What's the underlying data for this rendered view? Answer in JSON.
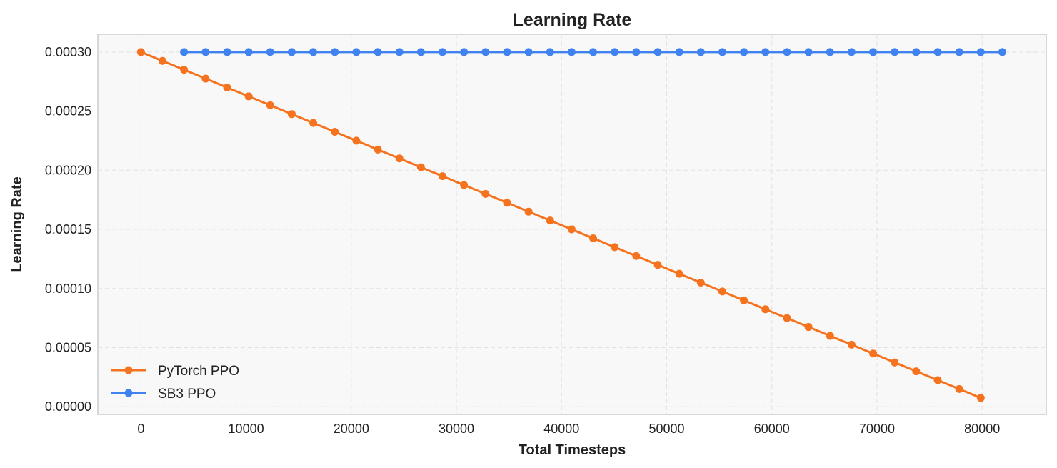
{
  "chart_data": {
    "type": "line",
    "title": "Learning Rate",
    "xlabel": "Total Timesteps",
    "ylabel": "Learning Rate",
    "xlim": [
      -4100,
      86100
    ],
    "ylim": [
      -6.5e-06,
      0.000315
    ],
    "xticks": [
      0,
      10000,
      20000,
      30000,
      40000,
      50000,
      60000,
      70000,
      80000
    ],
    "xtick_labels": [
      "0",
      "10000",
      "20000",
      "30000",
      "40000",
      "50000",
      "60000",
      "70000",
      "80000"
    ],
    "yticks": [
      0,
      5e-05,
      0.0001,
      0.00015,
      0.0002,
      0.00025,
      0.0003
    ],
    "ytick_labels": [
      "0.00000",
      "0.00005",
      "0.00010",
      "0.00015",
      "0.00020",
      "0.00025",
      "0.00030"
    ],
    "grid": true,
    "legend_position": "lower-left",
    "series": [
      {
        "name": "PyTorch PPO",
        "color": "#f5731f",
        "x": [
          0,
          2048,
          4096,
          6144,
          8192,
          10240,
          12288,
          14336,
          16384,
          18432,
          20480,
          22528,
          24576,
          26624,
          28672,
          30720,
          32768,
          34816,
          36864,
          38912,
          40960,
          43008,
          45056,
          47104,
          49152,
          51200,
          53248,
          55296,
          57344,
          59392,
          61440,
          63488,
          65536,
          67584,
          69632,
          71680,
          73728,
          75776,
          77824,
          79872
        ],
        "y": [
          0.0003,
          0.0002925,
          0.000285,
          0.0002775,
          0.00027,
          0.0002625,
          0.000255,
          0.0002475,
          0.00024,
          0.0002325,
          0.000225,
          0.0002175,
          0.00021,
          0.0002025,
          0.000195,
          0.0001875,
          0.00018,
          0.0001725,
          0.000165,
          0.0001575,
          0.00015,
          0.0001425,
          0.000135,
          0.0001275,
          0.00012,
          0.0001125,
          0.000105,
          9.75e-05,
          9e-05,
          8.25e-05,
          7.5e-05,
          6.75e-05,
          6e-05,
          5.25e-05,
          4.5e-05,
          3.75e-05,
          3e-05,
          2.25e-05,
          1.5e-05,
          7.5e-06
        ]
      },
      {
        "name": "SB3 PPO",
        "color": "#3f82f0",
        "x": [
          4096,
          6144,
          8192,
          10240,
          12288,
          14336,
          16384,
          18432,
          20480,
          22528,
          24576,
          26624,
          28672,
          30720,
          32768,
          34816,
          36864,
          38912,
          40960,
          43008,
          45056,
          47104,
          49152,
          51200,
          53248,
          55296,
          57344,
          59392,
          61440,
          63488,
          65536,
          67584,
          69632,
          71680,
          73728,
          75776,
          77824,
          79872,
          81920
        ],
        "y": [
          0.0003,
          0.0003,
          0.0003,
          0.0003,
          0.0003,
          0.0003,
          0.0003,
          0.0003,
          0.0003,
          0.0003,
          0.0003,
          0.0003,
          0.0003,
          0.0003,
          0.0003,
          0.0003,
          0.0003,
          0.0003,
          0.0003,
          0.0003,
          0.0003,
          0.0003,
          0.0003,
          0.0003,
          0.0003,
          0.0003,
          0.0003,
          0.0003,
          0.0003,
          0.0003,
          0.0003,
          0.0003,
          0.0003,
          0.0003,
          0.0003,
          0.0003,
          0.0003,
          0.0003,
          0.0003
        ]
      }
    ]
  }
}
